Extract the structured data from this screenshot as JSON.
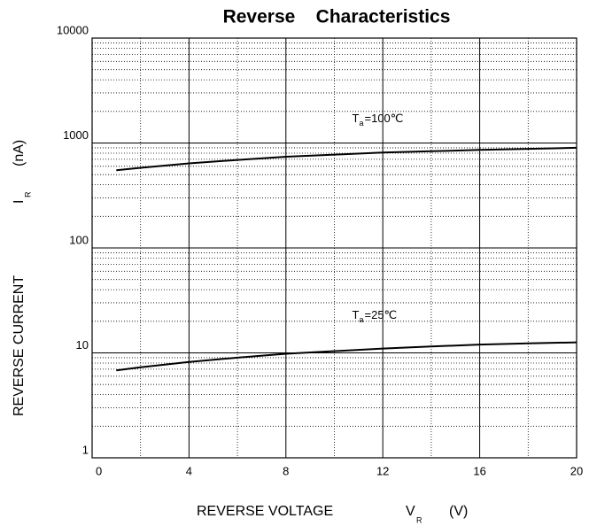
{
  "chart_data": {
    "type": "line",
    "title": "Reverse    Characteristics",
    "x_label": {
      "text": "REVERSE VOLTAGE",
      "symbol": "V",
      "subscript": "R",
      "unit": "(V)"
    },
    "y_label": {
      "text": "REVERSE CURRENT",
      "symbol": "I",
      "subscript": "R",
      "unit": "(nA)"
    },
    "x": [
      1,
      2,
      4,
      6,
      8,
      10,
      12,
      14,
      16,
      18,
      20
    ],
    "series": [
      {
        "name": {
          "symbol": "T",
          "subscript": "a",
          "rest": "=100℃"
        },
        "color": "#000000",
        "values": [
          550,
          580,
          640,
          690,
          740,
          775,
          810,
          835,
          860,
          880,
          900
        ]
      },
      {
        "name": {
          "symbol": "T",
          "subscript": "a",
          "rest": "=25℃"
        },
        "color": "#000000",
        "values": [
          6.8,
          7.3,
          8.2,
          9.0,
          9.8,
          10.4,
          11.0,
          11.5,
          12.0,
          12.3,
          12.6
        ]
      }
    ],
    "xlim": [
      0,
      20
    ],
    "xticks": [
      0,
      4,
      8,
      12,
      16,
      20
    ],
    "ylim": [
      1,
      10000
    ],
    "yticks": [
      1,
      10,
      100,
      1000,
      10000
    ],
    "log_y": true,
    "grid": true,
    "minor_grid": true
  }
}
